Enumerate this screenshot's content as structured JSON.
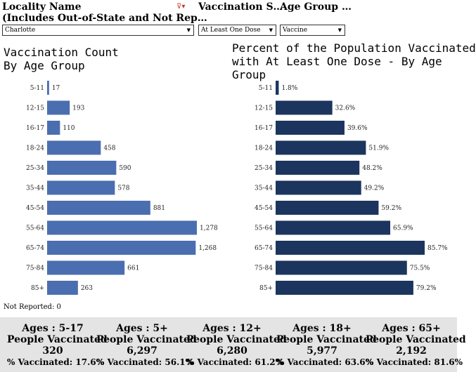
{
  "filters": {
    "locality": {
      "header_line1": "Locality Name",
      "header_line2": "(Includes Out-of-State and Not Rep…",
      "value": "Charlotte"
    },
    "vaccination_status": {
      "header": "Vaccination S…",
      "value": "At Least One Dose"
    },
    "age_group": {
      "header": "Age Group …",
      "value": "Vaccine"
    }
  },
  "not_reported": "Not Reported: 0",
  "colors": {
    "count_bar": "#4a6eb0",
    "percent_bar": "#1b355e",
    "summary_bg": "#e4e4e4"
  },
  "chart_data": [
    {
      "type": "bar",
      "orientation": "horizontal",
      "title_line1": "Vaccination Count",
      "title_line2": "By Age Group",
      "categories": [
        "5-11",
        "12-15",
        "16-17",
        "18-24",
        "25-34",
        "35-44",
        "45-54",
        "55-64",
        "65-74",
        "75-84",
        "85+"
      ],
      "values": [
        17,
        193,
        110,
        458,
        590,
        578,
        881,
        1278,
        1268,
        661,
        263
      ],
      "labels": [
        "17",
        "193",
        "110",
        "458",
        "590",
        "578",
        "881",
        "1,278",
        "1,268",
        "661",
        "263"
      ],
      "xlim": [
        0,
        1278
      ]
    },
    {
      "type": "bar",
      "orientation": "horizontal",
      "title_line1": "Percent of the Population Vaccinated",
      "title_line2": "with At Least One Dose - By Age",
      "title_line3": "Group",
      "categories": [
        "5-11",
        "12-15",
        "16-17",
        "18-24",
        "25-34",
        "35-44",
        "45-54",
        "55-64",
        "65-74",
        "75-84",
        "85+"
      ],
      "values": [
        1.8,
        32.6,
        39.6,
        51.9,
        48.2,
        49.2,
        59.2,
        65.9,
        85.7,
        75.5,
        79.2
      ],
      "labels": [
        "1.8%",
        "32.6%",
        "39.6%",
        "51.9%",
        "48.2%",
        "49.2%",
        "59.2%",
        "65.9%",
        "85.7%",
        "75.5%",
        "79.2%"
      ],
      "xlim": [
        0,
        85.7
      ]
    }
  ],
  "summary": [
    {
      "title": "Ages : 5-17",
      "label": "People Vaccinated",
      "count": "320",
      "pct": "% Vaccinated: 17.6%"
    },
    {
      "title": "Ages : 5+",
      "label": "People Vaccinated",
      "count": "6,297",
      "pct": "% Vaccinated: 56.1%"
    },
    {
      "title": "Ages : 12+",
      "label": "People Vaccinated",
      "count": "6,280",
      "pct": "% Vaccinated: 61.2%"
    },
    {
      "title": "Ages : 18+",
      "label": "People Vaccinated",
      "count": "5,977",
      "pct": "% Vaccinated: 63.6%"
    },
    {
      "title": "Ages : 65+",
      "label": "People Vaccinated",
      "count": "2,192",
      "pct": "% Vaccinated: 81.6%"
    }
  ]
}
